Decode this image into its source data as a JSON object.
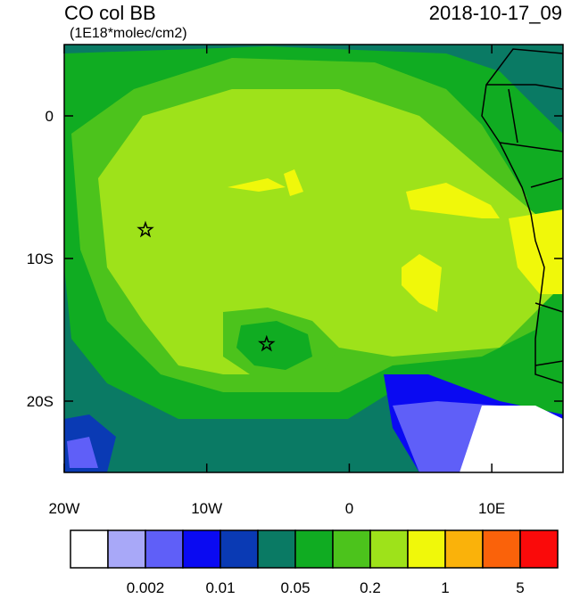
{
  "map": {
    "title": "CO col BB",
    "units": "(1E18*molec/cm2)",
    "date": "2018-10-17_09",
    "xlim": [
      -20,
      15
    ],
    "ylim": [
      -25,
      5
    ],
    "xticks": [
      {
        "value": -20,
        "label": "20W"
      },
      {
        "value": -10,
        "label": "10W"
      },
      0,
      {
        "value": 10,
        "label": "10E"
      }
    ],
    "yticks": [
      0,
      {
        "value": -10,
        "label": "10S"
      },
      {
        "value": -20,
        "label": "20S"
      }
    ],
    "markers": [
      {
        "lon": -14.3,
        "lat": -8
      },
      {
        "lon": -5.8,
        "lat": -16
      }
    ]
  },
  "colorbar": {
    "colors": [
      "#ffffff",
      "#a8a8f8",
      "#5f5ff8",
      "#0a0af2",
      "#0a3ab4",
      "#0a7a64",
      "#10ac22",
      "#4cc31c",
      "#9ee21a",
      "#f0f80a",
      "#fab20a",
      "#fa620a",
      "#fa0a0a"
    ],
    "labels": [
      "0.002",
      "0.01",
      "0.05",
      "0.2",
      "1",
      "5"
    ]
  }
}
